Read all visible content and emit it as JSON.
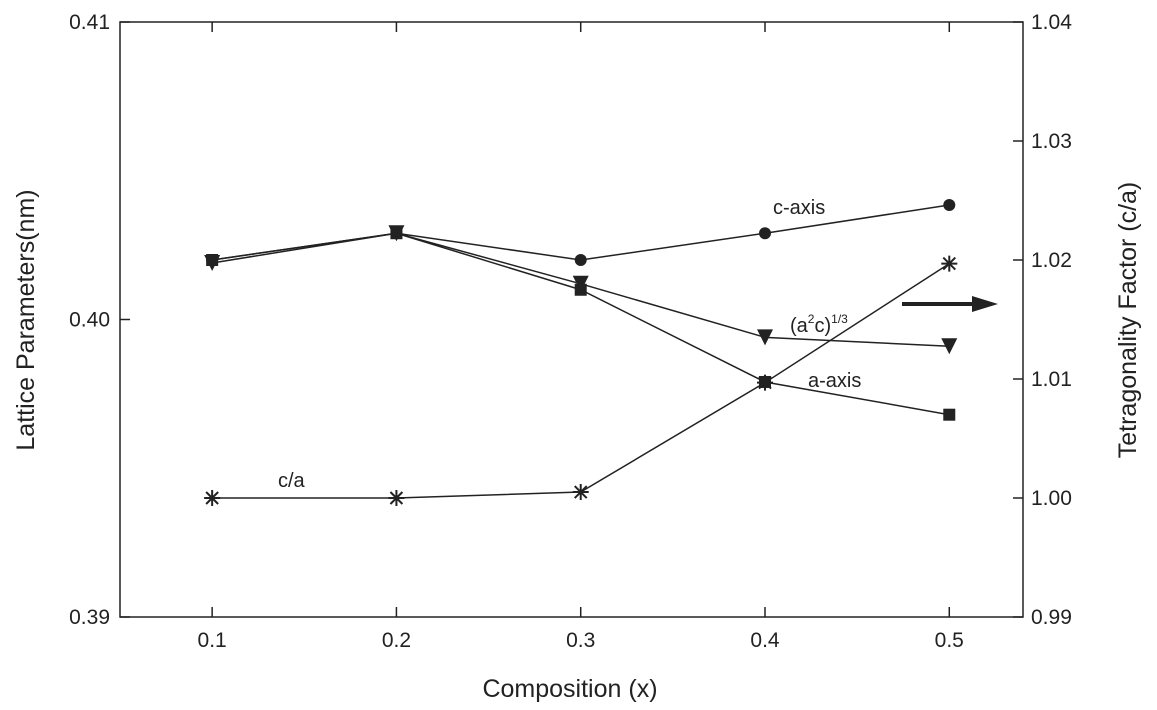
{
  "chart_data": {
    "type": "line",
    "xlabel": "Composition (x)",
    "ylabel": "Lattice Parameters(nm)",
    "y2label": "Tetragonality Factor (c/a)",
    "x": [
      0.1,
      0.2,
      0.3,
      0.4,
      0.5
    ],
    "xlim": [
      0.05,
      0.54
    ],
    "xticks": [
      0.1,
      0.2,
      0.3,
      0.4,
      0.5
    ],
    "ylim": [
      0.39,
      0.41
    ],
    "yticks": [
      {
        "value": 0.39,
        "label": "0.39"
      },
      {
        "value": 0.4,
        "label": "0.40"
      },
      {
        "value": 0.41,
        "label": "0.41"
      }
    ],
    "y2lim": [
      0.99,
      1.04
    ],
    "y2ticks": [
      {
        "value": 0.99,
        "label": "0.99"
      },
      {
        "value": 1.0,
        "label": "1.00"
      },
      {
        "value": 1.01,
        "label": "1.01"
      },
      {
        "value": 1.02,
        "label": "1.02"
      },
      {
        "value": 1.03,
        "label": "1.03"
      },
      {
        "value": 1.04,
        "label": "1.04"
      }
    ],
    "series": [
      {
        "name": "c-axis",
        "color": "#222222",
        "marker": "circle",
        "values": [
          0.402,
          0.4029,
          0.402,
          0.4029,
          0.40385
        ]
      },
      {
        "name": "a-axis",
        "color": "#222222",
        "marker": "square",
        "values": [
          0.402,
          0.4029,
          0.401,
          0.3979,
          0.3968
        ]
      },
      {
        "label_parts": [
          "(a",
          "2",
          "c)",
          "1/3"
        ],
        "color": "#222222",
        "marker": "triangle-down",
        "values": [
          0.4019,
          0.4029,
          0.4012,
          0.3994,
          0.3991
        ]
      },
      {
        "name": "c/a",
        "color": "#222222",
        "marker": "star",
        "axis": "y2",
        "values": [
          1.0,
          1.0,
          1.0005,
          1.0097,
          1.0197
        ]
      }
    ]
  }
}
